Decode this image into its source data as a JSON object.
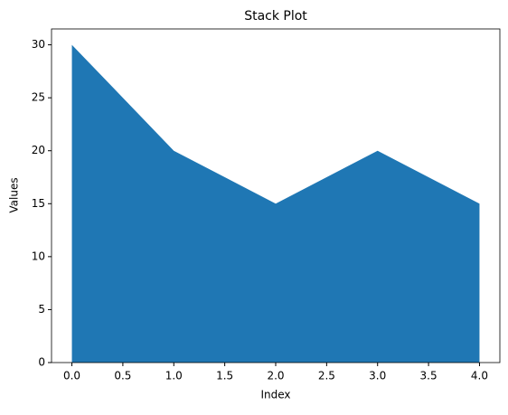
{
  "chart_data": {
    "type": "area",
    "title": "Stack Plot",
    "x_label": "Index",
    "y_label": "Values",
    "x": [
      0,
      1,
      2,
      3,
      4
    ],
    "values": [
      30,
      20,
      15,
      20,
      15
    ],
    "color": "#1f77b4",
    "xlim": [
      -0.2,
      4.2
    ],
    "xticks": [
      {
        "value": 0,
        "label": "0.0"
      },
      0.5,
      {
        "value": 1,
        "label": "1.0"
      },
      1.5,
      {
        "value": 2,
        "label": "2.0"
      },
      2.5,
      {
        "value": 3,
        "label": "3.0"
      },
      3.5,
      {
        "value": 4,
        "label": "4.0"
      }
    ],
    "ylim": [
      0,
      31.5
    ],
    "yticks": [
      0,
      5,
      10,
      15,
      20,
      25,
      30
    ],
    "grid": false
  }
}
